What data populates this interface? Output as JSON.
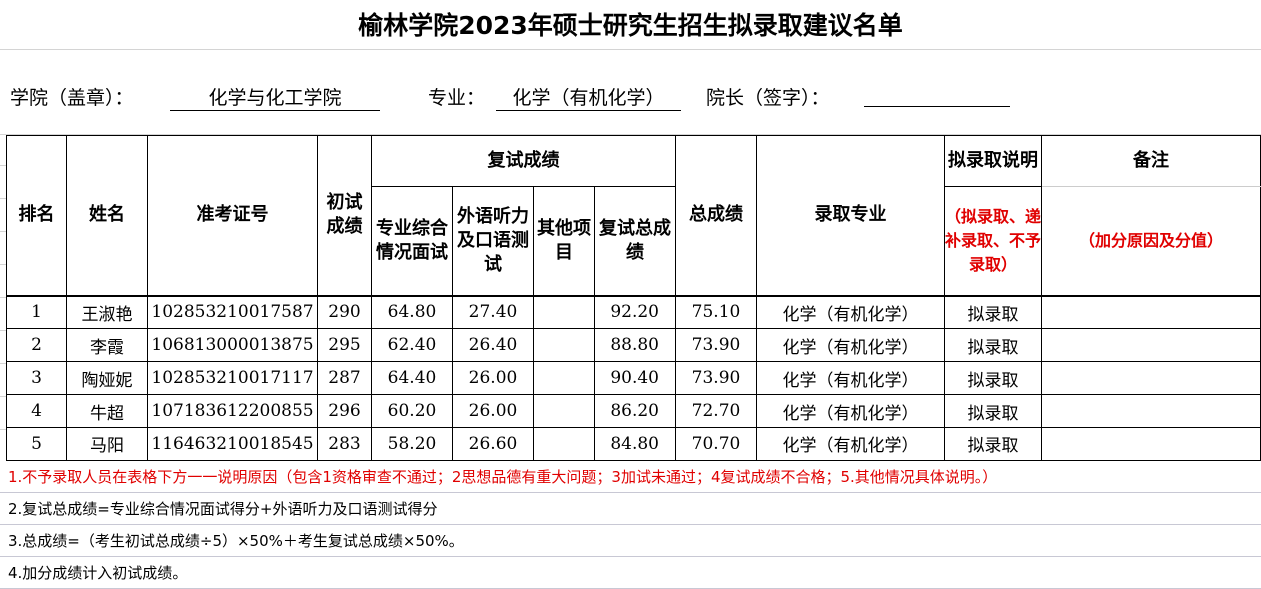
{
  "title": "榆林学院2023年硕士研究生招生拟录取建议名单",
  "info": {
    "college_label": "学院（盖章）：",
    "college": "化学与化工学院",
    "major_label": "专业：",
    "major": "化学（有机化学）",
    "dean_label": "院长（签字）：",
    "dean": ""
  },
  "headers": {
    "rank": "排名",
    "name": "姓名",
    "exam_id": "准考证号",
    "initial": "初试成绩",
    "retest": "复试成绩",
    "retest_cols": [
      "专业综合情况面试",
      "外语听力及口语测试",
      "其他项目",
      "复试总成绩"
    ],
    "total": "总成绩",
    "admit_major": "录取专业",
    "admit_note": "拟录取说明",
    "admit_note_sub": "（拟录取、递补录取、不予录取）",
    "remark": "备注",
    "remark_sub": "（加分原因及分值）"
  },
  "rows": [
    {
      "rank": "1",
      "name": "王淑艳",
      "id": "102853210017587",
      "initial": "290",
      "interview": "64.80",
      "foreign": "27.40",
      "other": "",
      "retest": "92.20",
      "total": "75.10",
      "major": "化学（有机化学）",
      "status": "拟录取",
      "remark": ""
    },
    {
      "rank": "2",
      "name": "李霞",
      "id": "106813000013875",
      "initial": "295",
      "interview": "62.40",
      "foreign": "26.40",
      "other": "",
      "retest": "88.80",
      "total": "73.90",
      "major": "化学（有机化学）",
      "status": "拟录取",
      "remark": ""
    },
    {
      "rank": "3",
      "name": "陶娅妮",
      "id": "102853210017117",
      "initial": "287",
      "interview": "64.40",
      "foreign": "26.00",
      "other": "",
      "retest": "90.40",
      "total": "73.90",
      "major": "化学（有机化学）",
      "status": "拟录取",
      "remark": ""
    },
    {
      "rank": "4",
      "name": "牛超",
      "id": "107183612200855",
      "initial": "296",
      "interview": "60.20",
      "foreign": "26.00",
      "other": "",
      "retest": "86.20",
      "total": "72.70",
      "major": "化学（有机化学）",
      "status": "拟录取",
      "remark": ""
    },
    {
      "rank": "5",
      "name": "马阳",
      "id": "116463210018545",
      "initial": "283",
      "interview": "58.20",
      "foreign": "26.60",
      "other": "",
      "retest": "84.80",
      "total": "70.70",
      "major": "化学（有机化学）",
      "status": "拟录取",
      "remark": ""
    }
  ],
  "notes": [
    "1.不予录取人员在表格下方一一说明原因（包含1资格审查不通过；2思想品德有重大问题；3加试未通过；4复试成绩不合格；5.其他情况具体说明。）",
    "2.复试总成绩=专业综合情况面试得分+外语听力及口语测试得分",
    "3.总成绩=（考生初试总成绩÷5）×50%＋考生复试总成绩×50%。",
    "4.加分成绩计入初试成绩。"
  ],
  "colors": {
    "note_red": "#e00000"
  }
}
